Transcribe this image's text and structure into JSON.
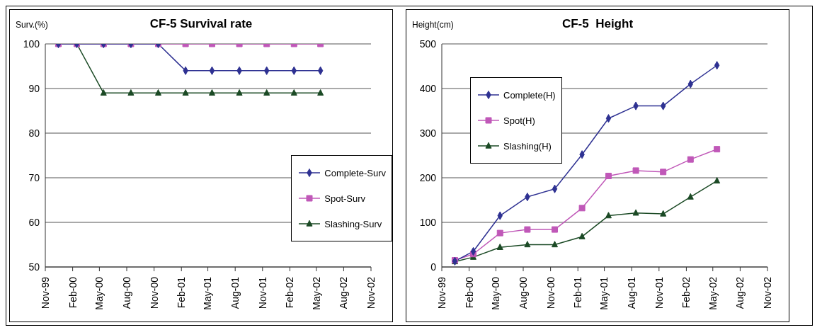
{
  "chart_data": [
    {
      "type": "line",
      "title": "CF-5 Survival rate",
      "ylabel": "Surv.(%)",
      "x": [
        "1999-12-15",
        "2000-02-15",
        "2000-05-15",
        "2000-08-15",
        "2000-11-15",
        "2001-02-15",
        "2001-05-15",
        "2001-08-15",
        "2001-11-15",
        "2002-02-15",
        "2002-05-15"
      ],
      "xlim": [
        "1999-11-01",
        "2002-11-01"
      ],
      "xticks": [
        {
          "value": "1999-11-01",
          "label": "Nov-99"
        },
        {
          "value": "2000-02-01",
          "label": "Feb-00"
        },
        {
          "value": "2000-05-01",
          "label": "May-00"
        },
        {
          "value": "2000-08-01",
          "label": "Aug-00"
        },
        {
          "value": "2000-11-01",
          "label": "Nov-00"
        },
        {
          "value": "2001-02-01",
          "label": "Feb-01"
        },
        {
          "value": "2001-05-01",
          "label": "May-01"
        },
        {
          "value": "2001-08-01",
          "label": "Aug-01"
        },
        {
          "value": "2001-11-01",
          "label": "Nov-01"
        },
        {
          "value": "2002-02-01",
          "label": "Feb-02"
        },
        {
          "value": "2002-05-01",
          "label": "May-02"
        },
        {
          "value": "2002-08-01",
          "label": "Aug-02"
        },
        {
          "value": "2002-11-01",
          "label": "Nov-02"
        }
      ],
      "ylim": [
        50,
        100
      ],
      "yticks": [
        50,
        60,
        70,
        80,
        90,
        100
      ],
      "grid": "y",
      "legend": "right",
      "line_style": "solid",
      "series": [
        {
          "name": "Complete-Surv",
          "color": "#2e3192",
          "marker": "diamond",
          "values": [
            100,
            100,
            100,
            100,
            100,
            94,
            94,
            94,
            94,
            94,
            94
          ]
        },
        {
          "name": "Spot-Surv",
          "color": "#c058b8",
          "marker": "square",
          "values": [
            100,
            100,
            100,
            100,
            100,
            100,
            100,
            100,
            100,
            100,
            100
          ]
        },
        {
          "name": "Slashing-Surv",
          "color": "#1b4a25",
          "marker": "triangle",
          "values": [
            100,
            100,
            89,
            89,
            89,
            89,
            89,
            89,
            89,
            89,
            89
          ]
        }
      ]
    },
    {
      "type": "line",
      "title": "CF-5  Height",
      "ylabel": "Height(cm)",
      "x": [
        "1999-12-15",
        "2000-02-15",
        "2000-05-15",
        "2000-08-15",
        "2000-11-15",
        "2001-02-15",
        "2001-05-15",
        "2001-08-15",
        "2001-11-15",
        "2002-02-15",
        "2002-05-15"
      ],
      "xlim": [
        "1999-11-01",
        "2002-11-01"
      ],
      "xticks": [
        {
          "value": "1999-11-01",
          "label": "Nov-99"
        },
        {
          "value": "2000-02-01",
          "label": "Feb-00"
        },
        {
          "value": "2000-05-01",
          "label": "May-00"
        },
        {
          "value": "2000-08-01",
          "label": "Aug-00"
        },
        {
          "value": "2000-11-01",
          "label": "Nov-00"
        },
        {
          "value": "2001-02-01",
          "label": "Feb-01"
        },
        {
          "value": "2001-05-01",
          "label": "May-01"
        },
        {
          "value": "2001-08-01",
          "label": "Aug-01"
        },
        {
          "value": "2001-11-01",
          "label": "Nov-01"
        },
        {
          "value": "2002-02-01",
          "label": "Feb-02"
        },
        {
          "value": "2002-05-01",
          "label": "May-02"
        },
        {
          "value": "2002-08-01",
          "label": "Aug-02"
        },
        {
          "value": "2002-11-01",
          "label": "Nov-02"
        }
      ],
      "ylim": [
        0,
        500
      ],
      "yticks": [
        0,
        100,
        200,
        300,
        400,
        500
      ],
      "grid": "y",
      "legend": "top left",
      "line_style": "solid",
      "series": [
        {
          "name": "Complete(H)",
          "color": "#2e3192",
          "marker": "diamond",
          "values": [
            13,
            35,
            115,
            157,
            175,
            252,
            333,
            361,
            361,
            410,
            452
          ]
        },
        {
          "name": "Spot(H)",
          "color": "#c058b8",
          "marker": "square",
          "values": [
            15,
            29,
            76,
            84,
            84,
            132,
            204,
            216,
            213,
            241,
            264
          ]
        },
        {
          "name": "Slashing(H)",
          "color": "#1b4a25",
          "marker": "triangle",
          "values": [
            12,
            22,
            44,
            50,
            50,
            68,
            115,
            121,
            119,
            157,
            193
          ]
        }
      ]
    }
  ]
}
